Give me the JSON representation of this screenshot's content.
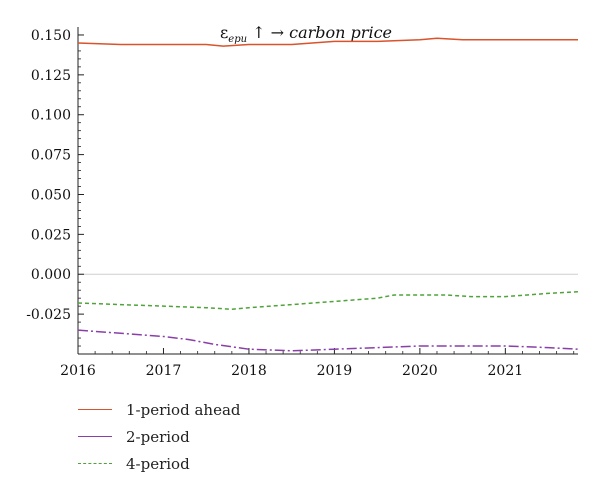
{
  "chart_data": {
    "type": "line",
    "title": {
      "main": "ε",
      "subscript": "epu",
      "rest_upright": " ↑ → ",
      "rest_italic": "carbon price"
    },
    "xlabel": "",
    "ylabel": "",
    "xlim": [
      2016,
      2021.85
    ],
    "ylim": [
      -0.05,
      0.155
    ],
    "x_ticks": [
      "2016",
      "2017",
      "2018",
      "2019",
      "2020",
      "2021"
    ],
    "y_ticks": [
      "0.150",
      "0.125",
      "0.100",
      "0.075",
      "0.050",
      "0.025",
      "0.000",
      "-0.025"
    ],
    "zero_line": true,
    "grid": false,
    "legend_position": "bottom-left",
    "series": [
      {
        "name": "1-period ahead",
        "color": "#d9532b",
        "style": "solid",
        "x": [
          2016,
          2016.5,
          2017,
          2017.5,
          2017.7,
          2018,
          2018.5,
          2019,
          2019.5,
          2020,
          2020.2,
          2020.5,
          2021,
          2021.5,
          2021.85
        ],
        "y": [
          0.145,
          0.144,
          0.144,
          0.144,
          0.143,
          0.144,
          0.144,
          0.146,
          0.146,
          0.147,
          0.148,
          0.147,
          0.147,
          0.147,
          0.147
        ]
      },
      {
        "name": "2-period",
        "color": "#8a3fa8",
        "style": "dashdot",
        "x": [
          2016,
          2016.5,
          2017,
          2017.3,
          2017.6,
          2018,
          2018.5,
          2019,
          2019.5,
          2020,
          2020.5,
          2021,
          2021.5,
          2021.85
        ],
        "y": [
          -0.035,
          -0.037,
          -0.039,
          -0.041,
          -0.044,
          -0.047,
          -0.048,
          -0.047,
          -0.046,
          -0.045,
          -0.045,
          -0.045,
          -0.046,
          -0.047
        ]
      },
      {
        "name": "4-period",
        "color": "#4fa33a",
        "style": "dashed",
        "x": [
          2016,
          2016.5,
          2017,
          2017.5,
          2017.8,
          2018,
          2018.5,
          2019,
          2019.5,
          2019.7,
          2020,
          2020.3,
          2020.6,
          2021,
          2021.5,
          2021.85
        ],
        "y": [
          -0.018,
          -0.019,
          -0.02,
          -0.021,
          -0.022,
          -0.021,
          -0.019,
          -0.017,
          -0.015,
          -0.013,
          -0.013,
          -0.013,
          -0.014,
          -0.014,
          -0.012,
          -0.011
        ]
      }
    ]
  }
}
